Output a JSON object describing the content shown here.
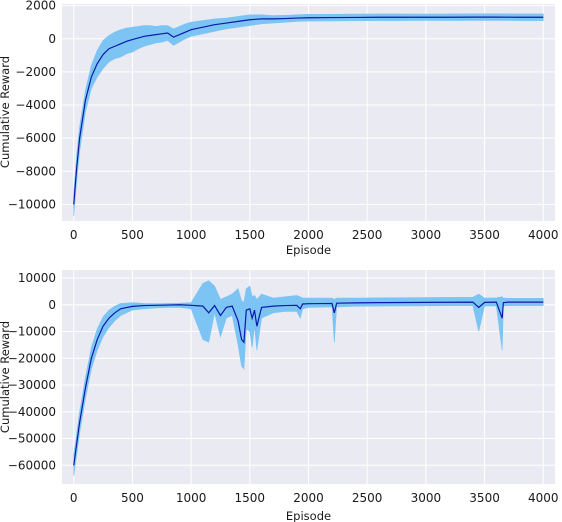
{
  "chart_data": [
    {
      "type": "line",
      "title": "",
      "xlabel": "Episode",
      "ylabel": "Cumulative Reward",
      "xlim": [
        -100,
        4100
      ],
      "ylim": [
        -11000,
        2100
      ],
      "xticks": [
        0,
        500,
        1000,
        1500,
        2000,
        2500,
        3000,
        3500,
        4000
      ],
      "yticks": [
        -10000,
        -8000,
        -6000,
        -4000,
        -2000,
        0,
        2000
      ],
      "xtick_labels": [
        "0",
        "500",
        "1000",
        "1500",
        "2000",
        "2500",
        "3000",
        "3500",
        "4000"
      ],
      "ytick_labels": [
        "−10000",
        "−8000",
        "−6000",
        "−4000",
        "−2000",
        "0",
        "2000"
      ],
      "grid": true,
      "background": "#eaeaf2",
      "series": [
        {
          "role": "mean",
          "color": "#0a1aa8",
          "x": [
            0,
            25,
            50,
            100,
            150,
            200,
            250,
            300,
            350,
            400,
            450,
            500,
            550,
            600,
            650,
            700,
            750,
            800,
            850,
            900,
            950,
            1000,
            1100,
            1200,
            1300,
            1400,
            1500,
            1600,
            1700,
            1800,
            1900,
            2000,
            2200,
            2400,
            2600,
            2800,
            3000,
            3200,
            3400,
            3600,
            3800,
            4000
          ],
          "y": [
            -10000,
            -7800,
            -6000,
            -3700,
            -2300,
            -1500,
            -950,
            -600,
            -450,
            -300,
            -150,
            -50,
            50,
            150,
            200,
            250,
            300,
            350,
            100,
            250,
            400,
            550,
            700,
            850,
            950,
            1050,
            1150,
            1200,
            1200,
            1220,
            1250,
            1270,
            1280,
            1290,
            1300,
            1300,
            1300,
            1300,
            1310,
            1310,
            1300,
            1300
          ]
        },
        {
          "role": "range",
          "color": "#7cc4f4",
          "x": [
            0,
            25,
            50,
            100,
            150,
            200,
            250,
            300,
            350,
            400,
            450,
            500,
            550,
            600,
            650,
            700,
            750,
            800,
            850,
            900,
            950,
            1000,
            1100,
            1200,
            1300,
            1400,
            1500,
            1600,
            1700,
            1800,
            1900,
            2000,
            2200,
            2400,
            2600,
            2800,
            3000,
            3200,
            3400,
            3600,
            3800,
            4000
          ],
          "upper": [
            -9300,
            -7000,
            -5300,
            -3100,
            -1600,
            -700,
            -100,
            200,
            400,
            550,
            650,
            700,
            750,
            800,
            800,
            750,
            800,
            800,
            600,
            750,
            900,
            1000,
            1100,
            1200,
            1250,
            1350,
            1450,
            1450,
            1400,
            1420,
            1450,
            1480,
            1480,
            1490,
            1500,
            1500,
            1490,
            1500,
            1510,
            1510,
            1500,
            1500
          ],
          "lower": [
            -10700,
            -8600,
            -6800,
            -4400,
            -3000,
            -2300,
            -1800,
            -1400,
            -1200,
            -1100,
            -900,
            -800,
            -600,
            -450,
            -350,
            -250,
            -200,
            -100,
            -400,
            -200,
            0,
            150,
            300,
            450,
            600,
            700,
            800,
            900,
            950,
            1000,
            1050,
            1070,
            1080,
            1090,
            1100,
            1100,
            1110,
            1100,
            1110,
            1110,
            1100,
            1100
          ]
        }
      ]
    },
    {
      "type": "line",
      "title": "",
      "xlabel": "Episode",
      "ylabel": "Cumulative Reward",
      "xlim": [
        -100,
        4100
      ],
      "ylim": [
        -67000,
        13000
      ],
      "xticks": [
        0,
        500,
        1000,
        1500,
        2000,
        2500,
        3000,
        3500,
        4000
      ],
      "yticks": [
        -60000,
        -50000,
        -40000,
        -30000,
        -20000,
        -10000,
        0,
        10000
      ],
      "xtick_labels": [
        "0",
        "500",
        "1000",
        "1500",
        "2000",
        "2500",
        "3000",
        "3500",
        "4000"
      ],
      "ytick_labels": [
        "−60000",
        "−50000",
        "−40000",
        "−30000",
        "−20000",
        "−10000",
        "0",
        "10000"
      ],
      "grid": true,
      "background": "#eaeaf2",
      "series": [
        {
          "role": "mean",
          "color": "#0a1aa8",
          "x": [
            0,
            25,
            50,
            100,
            150,
            200,
            250,
            300,
            350,
            400,
            500,
            600,
            700,
            800,
            900,
            1000,
            1100,
            1150,
            1200,
            1250,
            1300,
            1350,
            1400,
            1430,
            1450,
            1470,
            1500,
            1520,
            1540,
            1560,
            1600,
            1700,
            1800,
            1900,
            1930,
            1950,
            2000,
            2200,
            2220,
            2240,
            2400,
            2600,
            3000,
            3400,
            3450,
            3500,
            3600,
            3650,
            3660,
            3700,
            4000
          ],
          "y": [
            -60000,
            -52000,
            -44000,
            -31000,
            -20000,
            -13000,
            -8000,
            -5000,
            -3000,
            -1500,
            -600,
            -300,
            -200,
            -100,
            0,
            -200,
            -500,
            -3000,
            -300,
            -4000,
            -1000,
            -500,
            -6000,
            -13000,
            -14000,
            -2000,
            -1500,
            -5000,
            -2000,
            -8000,
            -1000,
            -500,
            -300,
            -200,
            -1500,
            300,
            400,
            500,
            -3000,
            600,
            700,
            800,
            900,
            1000,
            -1000,
            900,
            1000,
            -5000,
            800,
            1000,
            1000
          ]
        },
        {
          "role": "range",
          "color": "#7cc4f4",
          "x": [
            0,
            25,
            50,
            100,
            150,
            200,
            250,
            300,
            350,
            400,
            500,
            600,
            700,
            800,
            900,
            1000,
            1100,
            1150,
            1200,
            1250,
            1300,
            1350,
            1400,
            1430,
            1450,
            1470,
            1500,
            1520,
            1540,
            1560,
            1600,
            1700,
            1800,
            1900,
            1930,
            1950,
            2000,
            2200,
            2220,
            2240,
            2400,
            2600,
            3000,
            3400,
            3450,
            3500,
            3600,
            3650,
            3660,
            3700,
            4000
          ],
          "upper": [
            -56000,
            -48000,
            -40000,
            -27000,
            -16000,
            -9000,
            -4500,
            -2000,
            -500,
            500,
            800,
            500,
            400,
            500,
            600,
            800,
            8000,
            9000,
            7000,
            2000,
            3000,
            4000,
            6000,
            1500,
            1000,
            6000,
            7000,
            3000,
            3500,
            2000,
            4000,
            2500,
            3000,
            3500,
            3000,
            2500,
            2500,
            2500,
            2000,
            2500,
            2500,
            2600,
            2700,
            2800,
            4000,
            2500,
            2600,
            3000,
            2500,
            2400,
            2400
          ],
          "lower": [
            -64000,
            -56000,
            -48000,
            -35000,
            -24000,
            -17000,
            -12000,
            -8500,
            -6000,
            -4000,
            -2000,
            -1500,
            -1200,
            -1000,
            -1000,
            -1500,
            -13000,
            -14000,
            -3000,
            -12000,
            -5000,
            -4000,
            -15000,
            -23000,
            -24000,
            -9000,
            -10000,
            -16000,
            -8000,
            -17000,
            -5000,
            -3000,
            -2500,
            -2500,
            -5000,
            -1500,
            -1000,
            -800,
            -14000,
            -800,
            -600,
            -500,
            -400,
            -300,
            -10000,
            -500,
            -400,
            -17000,
            -500,
            -300,
            -300
          ]
        }
      ]
    }
  ]
}
